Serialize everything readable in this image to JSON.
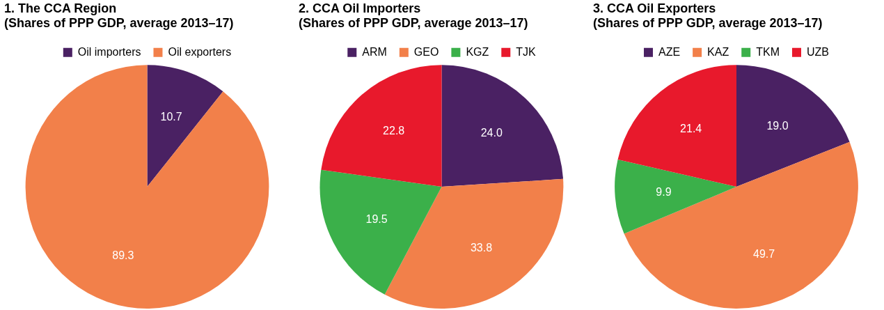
{
  "chart_data": [
    {
      "type": "pie",
      "title": "1. The CCA Region",
      "subtitle": "(Shares of PPP GDP, average 2013–17)",
      "categories": [
        "Oil importers",
        "Oil exporters"
      ],
      "values": [
        10.7,
        89.3
      ],
      "value_labels": [
        "10.7",
        "89.3"
      ],
      "colors": [
        "#4a2163",
        "#f2804a"
      ],
      "legend": "top"
    },
    {
      "type": "pie",
      "title": "2. CCA Oil Importers",
      "subtitle": "(Shares of PPP GDP, average 2013–17)",
      "categories": [
        "ARM",
        "GEO",
        "KGZ",
        "TJK"
      ],
      "values": [
        24.0,
        33.8,
        19.5,
        22.8
      ],
      "value_labels": [
        "24.0",
        "33.8",
        "19.5",
        "22.8"
      ],
      "colors": [
        "#4a2163",
        "#f2804a",
        "#3bb04a",
        "#e8192c"
      ],
      "legend": "top"
    },
    {
      "type": "pie",
      "title": "3. CCA Oil Exporters",
      "subtitle": "(Shares of PPP GDP, average 2013–17)",
      "categories": [
        "AZE",
        "KAZ",
        "TKM",
        "UZB"
      ],
      "values": [
        19.0,
        49.7,
        9.9,
        21.4
      ],
      "value_labels": [
        "19.0",
        "49.7",
        "9.9",
        "21.4"
      ],
      "colors": [
        "#4a2163",
        "#f2804a",
        "#3bb04a",
        "#e8192c"
      ],
      "legend": "top"
    }
  ]
}
